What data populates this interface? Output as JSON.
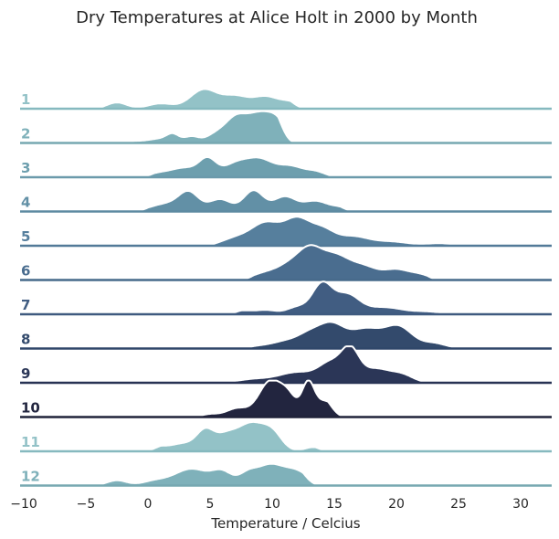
{
  "chart_data": {
    "type": "ridgeline",
    "title": "Dry Temperatures at Alice Holt in 2000 by Month",
    "xlabel": "Temperature / Celcius",
    "xlim": [
      -10,
      32.5
    ],
    "xticks": [
      "−10",
      "−5",
      "0",
      "5",
      "10",
      "15",
      "20",
      "25",
      "30"
    ],
    "grid": false,
    "series": [
      {
        "name": "1",
        "color": "#93c2c7",
        "line_color": "#86b9bf",
        "range": [
          -5,
          13
        ],
        "peaks": [
          [
            -2.5,
            0.18,
            0.8
          ],
          [
            1,
            0.15,
            1
          ],
          [
            4.5,
            0.55,
            1.1
          ],
          [
            7,
            0.33,
            1
          ],
          [
            9.5,
            0.35,
            1.1
          ],
          [
            11.5,
            0.15,
            0.7
          ]
        ]
      },
      {
        "name": "2",
        "color": "#7fb1ba",
        "line_color": "#77a8b1",
        "range": [
          -2.5,
          12
        ],
        "peaks": [
          [
            -1.5,
            0.05,
            1
          ],
          [
            1,
            0.12,
            1
          ],
          [
            2,
            0.2,
            0.5
          ],
          [
            3.5,
            0.18,
            0.6
          ],
          [
            5.5,
            0.25,
            0.8
          ],
          [
            7,
            0.55,
            0.8
          ],
          [
            9,
            0.85,
            1.2
          ],
          [
            10.5,
            0.35,
            0.7
          ]
        ]
      },
      {
        "name": "3",
        "color": "#6d9fae",
        "line_color": "#6b9aab",
        "range": [
          -1,
          16
        ],
        "peaks": [
          [
            1,
            0.12,
            1
          ],
          [
            3,
            0.25,
            1
          ],
          [
            4.8,
            0.5,
            0.7
          ],
          [
            7,
            0.35,
            1
          ],
          [
            9,
            0.5,
            1.1
          ],
          [
            11.5,
            0.3,
            1
          ],
          [
            13.5,
            0.15,
            0.8
          ]
        ]
      },
      {
        "name": "4",
        "color": "#6290a6",
        "line_color": "#5e8ba2",
        "range": [
          -1.5,
          17
        ],
        "peaks": [
          [
            1.5,
            0.22,
            1.3
          ],
          [
            3.3,
            0.5,
            0.8
          ],
          [
            5.8,
            0.35,
            0.9
          ],
          [
            8.5,
            0.6,
            0.8
          ],
          [
            11,
            0.42,
            0.9
          ],
          [
            13.5,
            0.3,
            1
          ],
          [
            15.5,
            0.1,
            0.7
          ]
        ]
      },
      {
        "name": "5",
        "color": "#567f9d",
        "line_color": "#527a98",
        "range": [
          4,
          26
        ],
        "peaks": [
          [
            7,
            0.2,
            1.1
          ],
          [
            9.5,
            0.65,
            1.2
          ],
          [
            12,
            0.7,
            1
          ],
          [
            14,
            0.45,
            1
          ],
          [
            16.5,
            0.25,
            1.2
          ],
          [
            19.5,
            0.12,
            1.5
          ],
          [
            23.5,
            0.07,
            1
          ]
        ]
      },
      {
        "name": "6",
        "color": "#4a6d8f",
        "line_color": "#466a8a",
        "range": [
          7,
          24
        ],
        "peaks": [
          [
            9.5,
            0.2,
            1.1
          ],
          [
            11.5,
            0.4,
            1
          ],
          [
            13,
            0.65,
            0.9
          ],
          [
            15,
            0.72,
            1.3
          ],
          [
            17.5,
            0.3,
            1
          ],
          [
            20,
            0.3,
            1.1
          ],
          [
            22,
            0.12,
            0.8
          ]
        ]
      },
      {
        "name": "7",
        "color": "#415d82",
        "line_color": "#3f5a7f",
        "range": [
          6,
          26
        ],
        "peaks": [
          [
            7.5,
            0.1,
            0.8
          ],
          [
            9.5,
            0.12,
            0.9
          ],
          [
            12,
            0.2,
            0.8
          ],
          [
            14,
            0.85,
            0.8
          ],
          [
            16,
            0.55,
            1
          ],
          [
            19,
            0.2,
            1.5
          ],
          [
            22.5,
            0.07,
            1.2
          ]
        ]
      },
      {
        "name": "8",
        "color": "#334a6c",
        "line_color": "#30476a",
        "range": [
          7,
          26
        ],
        "peaks": [
          [
            9,
            0.07,
            1
          ],
          [
            11,
            0.18,
            1
          ],
          [
            13,
            0.4,
            1
          ],
          [
            14.8,
            0.62,
            1
          ],
          [
            17.5,
            0.55,
            1.3
          ],
          [
            20.2,
            0.6,
            1.1
          ],
          [
            23,
            0.15,
            1
          ]
        ]
      },
      {
        "name": "9",
        "color": "#2b3657",
        "line_color": "#283354",
        "range": [
          3,
          24
        ],
        "peaks": [
          [
            5,
            0.03,
            0.6
          ],
          [
            8.5,
            0.1,
            1.3
          ],
          [
            12,
            0.3,
            1.5
          ],
          [
            14.8,
            0.55,
            1
          ],
          [
            16.3,
            0.8,
            0.7
          ],
          [
            18.3,
            0.4,
            1.2
          ],
          [
            20.5,
            0.2,
            0.9
          ]
        ]
      },
      {
        "name": "10",
        "color": "#22253f",
        "line_color": "#1f2239",
        "range": [
          3,
          16
        ],
        "peaks": [
          [
            5,
            0.08,
            0.7
          ],
          [
            7.2,
            0.25,
            0.9
          ],
          [
            9.8,
            1.0,
            0.9
          ],
          [
            11.3,
            0.55,
            0.7
          ],
          [
            12.9,
            0.92,
            0.5
          ],
          [
            14.3,
            0.45,
            0.8
          ]
        ]
      },
      {
        "name": "11",
        "color": "#93c2c7",
        "line_color": "#86b9bf",
        "range": [
          -0.5,
          15
        ],
        "peaks": [
          [
            0.8,
            0.12,
            0.7
          ],
          [
            2.8,
            0.22,
            1
          ],
          [
            4.6,
            0.55,
            0.7
          ],
          [
            6.3,
            0.45,
            0.9
          ],
          [
            8.3,
            0.75,
            1
          ],
          [
            10,
            0.5,
            0.8
          ],
          [
            13.3,
            0.12,
            0.7
          ]
        ]
      },
      {
        "name": "12",
        "color": "#7fb1ba",
        "line_color": "#77a8b1",
        "range": [
          -5,
          14
        ],
        "peaks": [
          [
            -2.5,
            0.15,
            0.8
          ],
          [
            0.5,
            0.12,
            1
          ],
          [
            3.5,
            0.48,
            1.4
          ],
          [
            6,
            0.35,
            0.8
          ],
          [
            8,
            0.28,
            0.7
          ],
          [
            9.8,
            0.58,
            1.1
          ],
          [
            12,
            0.38,
            1
          ]
        ]
      }
    ]
  }
}
